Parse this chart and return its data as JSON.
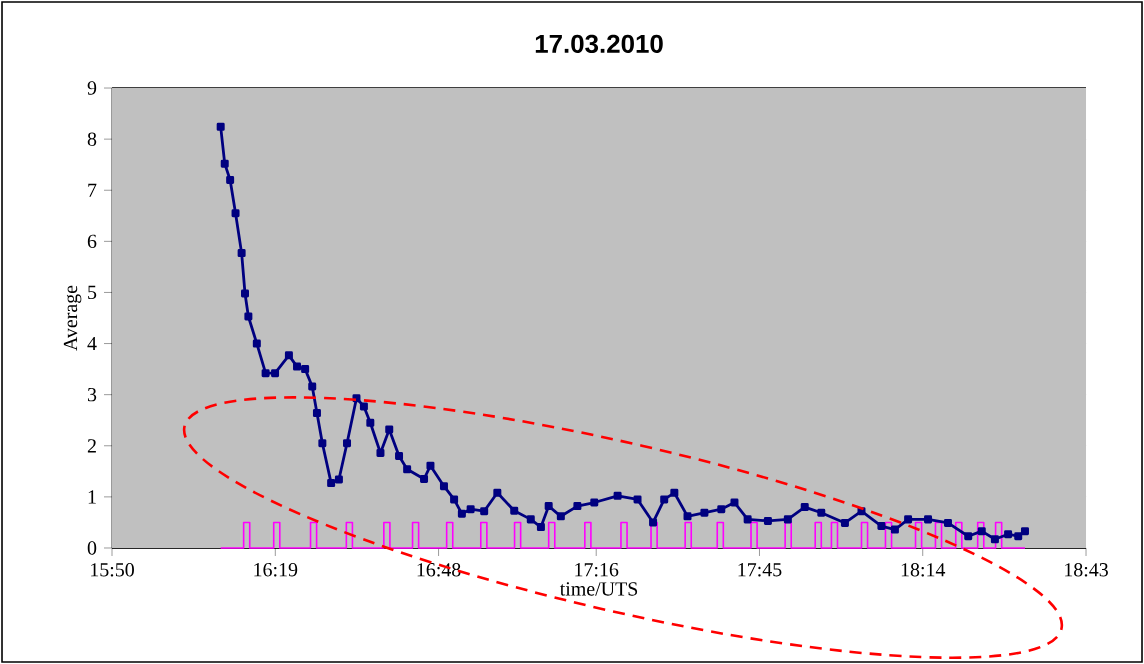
{
  "chart_data": {
    "type": "line",
    "title": "17.03.2010",
    "xlabel": "time/UTS",
    "ylabel": "Average",
    "xlim": [
      15.8333,
      18.7167
    ],
    "xticks": [
      {
        "value": 15.8333,
        "label": "15:50"
      },
      {
        "value": 16.3167,
        "label": "16:19"
      },
      {
        "value": 16.8,
        "label": "16:48"
      },
      {
        "value": 17.2667,
        "label": "17:16"
      },
      {
        "value": 17.75,
        "label": "17:45"
      },
      {
        "value": 18.2333,
        "label": "18:14"
      },
      {
        "value": 18.7167,
        "label": "18:43"
      }
    ],
    "ylim": [
      0,
      9
    ],
    "yticks": [
      0,
      1,
      2,
      3,
      4,
      5,
      6,
      7,
      8,
      9
    ],
    "grid": "y",
    "series": [
      {
        "color": "#ff00ff",
        "marker": "none",
        "x": [
          16.155,
          16.223,
          16.223,
          16.241,
          16.241,
          16.312,
          16.312,
          16.33,
          16.33,
          16.421,
          16.421,
          16.439,
          16.439,
          16.527,
          16.527,
          16.545,
          16.545,
          16.638,
          16.638,
          16.656,
          16.656,
          16.723,
          16.723,
          16.741,
          16.741,
          16.824,
          16.824,
          16.842,
          16.842,
          16.925,
          16.925,
          16.943,
          16.943,
          17.025,
          17.025,
          17.043,
          17.043,
          17.126,
          17.126,
          17.144,
          17.144,
          17.233,
          17.233,
          17.251,
          17.251,
          17.34,
          17.34,
          17.358,
          17.358,
          17.429,
          17.429,
          17.447,
          17.447,
          17.53,
          17.53,
          17.548,
          17.548,
          17.625,
          17.625,
          17.643,
          17.643,
          17.725,
          17.725,
          17.743,
          17.743,
          17.826,
          17.826,
          17.844,
          17.844,
          17.915,
          17.915,
          17.933,
          17.933,
          17.963,
          17.963,
          17.981,
          17.981,
          18.052,
          18.052,
          18.07,
          18.07,
          18.123,
          18.123,
          18.141,
          18.141,
          18.212,
          18.212,
          18.23,
          18.23,
          18.271,
          18.271,
          18.289,
          18.289,
          18.331,
          18.331,
          18.349,
          18.349,
          18.396,
          18.396,
          18.414,
          18.414,
          18.449,
          18.449,
          18.467,
          18.467,
          18.536
        ],
        "values": [
          0,
          0,
          0.5,
          0.5,
          0,
          0,
          0.5,
          0.5,
          0,
          0,
          0.5,
          0.5,
          0,
          0,
          0.5,
          0.5,
          0,
          0,
          0.5,
          0.5,
          0,
          0,
          0.5,
          0.5,
          0,
          0,
          0.5,
          0.5,
          0,
          0,
          0.5,
          0.5,
          0,
          0,
          0.5,
          0.5,
          0,
          0,
          0.5,
          0.5,
          0,
          0,
          0.5,
          0.5,
          0,
          0,
          0.5,
          0.5,
          0,
          0,
          0.5,
          0.5,
          0,
          0,
          0.5,
          0.5,
          0,
          0,
          0.5,
          0.5,
          0,
          0,
          0.5,
          0.5,
          0,
          0,
          0.5,
          0.5,
          0,
          0,
          0.5,
          0.5,
          0,
          0,
          0.5,
          0.5,
          0,
          0,
          0.5,
          0.5,
          0,
          0,
          0.5,
          0.5,
          0,
          0,
          0.5,
          0.5,
          0,
          0,
          0.5,
          0.5,
          0,
          0,
          0.5,
          0.5,
          0,
          0,
          0.5,
          0.5,
          0,
          0,
          0.5,
          0.5,
          0,
          0
        ]
      },
      {
        "color": "#000080",
        "marker": "square",
        "x": [
          16.155,
          16.167,
          16.183,
          16.199,
          16.217,
          16.227,
          16.237,
          16.262,
          16.288,
          16.316,
          16.357,
          16.381,
          16.405,
          16.426,
          16.44,
          16.456,
          16.482,
          16.505,
          16.529,
          16.557,
          16.579,
          16.598,
          16.628,
          16.654,
          16.683,
          16.707,
          16.757,
          16.776,
          16.816,
          16.846,
          16.869,
          16.895,
          16.935,
          16.974,
          17.024,
          17.073,
          17.103,
          17.126,
          17.162,
          17.211,
          17.261,
          17.33,
          17.389,
          17.435,
          17.468,
          17.498,
          17.537,
          17.587,
          17.637,
          17.676,
          17.715,
          17.775,
          17.834,
          17.884,
          17.933,
          18.003,
          18.052,
          18.111,
          18.151,
          18.19,
          18.249,
          18.308,
          18.368,
          18.408,
          18.447,
          18.486,
          18.516,
          18.536
        ],
        "values": [
          8.24,
          7.52,
          7.2,
          6.55,
          5.77,
          4.98,
          4.53,
          4.0,
          3.42,
          3.42,
          3.77,
          3.55,
          3.5,
          3.16,
          2.64,
          2.05,
          1.27,
          1.34,
          2.05,
          2.93,
          2.77,
          2.45,
          1.86,
          2.32,
          1.8,
          1.54,
          1.35,
          1.61,
          1.21,
          0.95,
          0.67,
          0.76,
          0.72,
          1.08,
          0.73,
          0.56,
          0.41,
          0.82,
          0.62,
          0.82,
          0.89,
          1.02,
          0.95,
          0.5,
          0.95,
          1.08,
          0.62,
          0.69,
          0.76,
          0.89,
          0.56,
          0.53,
          0.56,
          0.8,
          0.69,
          0.49,
          0.72,
          0.43,
          0.36,
          0.56,
          0.56,
          0.49,
          0.23,
          0.33,
          0.17,
          0.27,
          0.23,
          0.33
        ]
      }
    ]
  }
}
